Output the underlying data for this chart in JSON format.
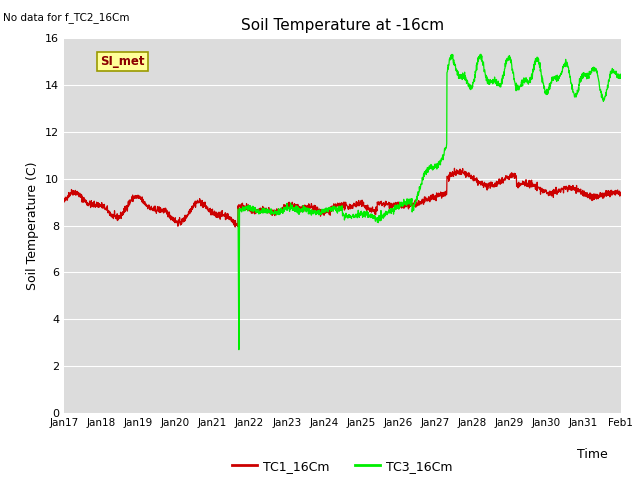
{
  "title": "Soil Temperature at -16cm",
  "xlabel": "Time",
  "ylabel": "Soil Temperature (C)",
  "top_left_note": "No data for f_TC2_16Cm",
  "legend_box_label": "SI_met",
  "ylim": [
    0,
    16
  ],
  "yticks": [
    0,
    2,
    4,
    6,
    8,
    10,
    12,
    14,
    16
  ],
  "date_labels": [
    "Jan 17",
    "Jan 18",
    "Jan 19",
    "Jan 20",
    "Jan 21",
    "Jan 22",
    "Jan 23",
    "Jan 24",
    "Jan 25",
    "Jan 26",
    "Jan 27",
    "Jan 28",
    "Jan 29",
    "Jan 30",
    "Jan 31",
    "Feb 1"
  ],
  "bg_color": "#dcdcdc",
  "line1_color": "#cc0000",
  "line2_color": "#00ee00",
  "legend1": "TC1_16Cm",
  "legend2": "TC3_16Cm"
}
